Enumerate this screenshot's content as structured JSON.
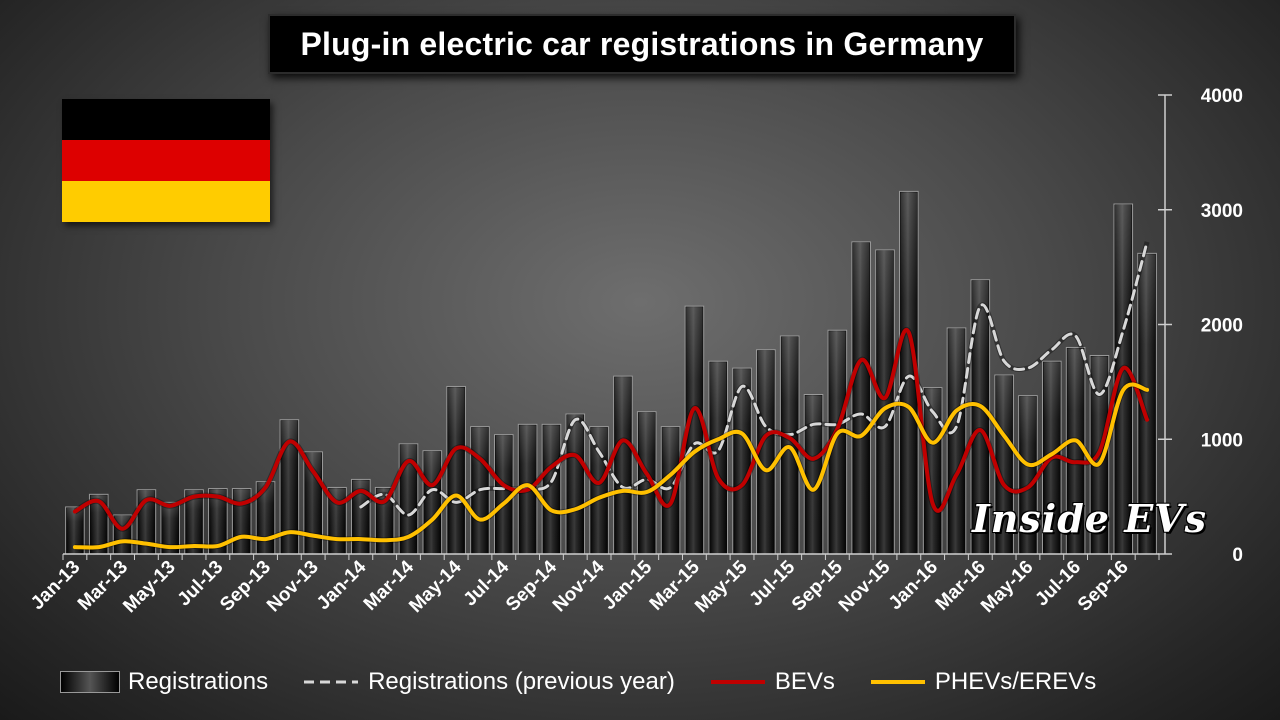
{
  "chart_data": {
    "type": "bar",
    "title": "Plug-in electric car registrations in Germany",
    "categories": [
      "Jan-13",
      "Feb-13",
      "Mar-13",
      "Apr-13",
      "May-13",
      "Jun-13",
      "Jul-13",
      "Aug-13",
      "Sep-13",
      "Oct-13",
      "Nov-13",
      "Dec-13",
      "Jan-14",
      "Feb-14",
      "Mar-14",
      "Apr-14",
      "May-14",
      "Jun-14",
      "Jul-14",
      "Aug-14",
      "Sep-14",
      "Oct-14",
      "Nov-14",
      "Dec-14",
      "Jan-15",
      "Feb-15",
      "Mar-15",
      "Apr-15",
      "May-15",
      "Jun-15",
      "Jul-15",
      "Aug-15",
      "Sep-15",
      "Oct-15",
      "Nov-15",
      "Dec-15",
      "Jan-16",
      "Feb-16",
      "Mar-16",
      "Apr-16",
      "May-16",
      "Jun-16",
      "Jul-16",
      "Aug-16",
      "Sep-16",
      "Oct-16"
    ],
    "tick_labels": [
      "Jan-13",
      "Mar-13",
      "May-13",
      "Jul-13",
      "Sep-13",
      "Nov-13",
      "Jan-14",
      "Mar-14",
      "May-14",
      "Jul-14",
      "Sep-14",
      "Nov-14",
      "Jan-15",
      "Mar-15",
      "May-15",
      "Jul-15",
      "Sep-15",
      "Nov-15",
      "Jan-16",
      "Mar-16",
      "May-16",
      "Jul-16",
      "Sep-16"
    ],
    "y_ticks": [
      "0",
      "1000",
      "2000",
      "3000",
      "4000"
    ],
    "ylim": [
      0,
      4000
    ],
    "axis_side": "right",
    "series": [
      {
        "name": "Registrations",
        "type": "bar",
        "color": "#000000",
        "values": [
          410,
          520,
          340,
          560,
          450,
          560,
          570,
          570,
          630,
          1170,
          890,
          580,
          650,
          580,
          960,
          900,
          1460,
          1110,
          1040,
          1130,
          1130,
          1220,
          1110,
          1550,
          1240,
          1110,
          2160,
          1680,
          1620,
          1780,
          1900,
          1390,
          1950,
          2720,
          2650,
          3160,
          1450,
          1970,
          2390,
          1560,
          1380,
          1680,
          1800,
          1730,
          3050,
          2620
        ]
      },
      {
        "name": "Registrations (previous year)",
        "type": "line",
        "style": "dashed",
        "color": "#d8d8d8",
        "values": [
          null,
          null,
          null,
          null,
          null,
          null,
          null,
          null,
          null,
          null,
          null,
          null,
          410,
          520,
          340,
          560,
          450,
          560,
          570,
          570,
          630,
          1170,
          890,
          580,
          650,
          580,
          960,
          900,
          1460,
          1110,
          1040,
          1130,
          1130,
          1220,
          1110,
          1550,
          1240,
          1110,
          2160,
          1680,
          1620,
          1780,
          1900,
          1390,
          1950,
          2720
        ]
      },
      {
        "name": "BEVs",
        "type": "line",
        "color": "#c00000",
        "values": [
          370,
          460,
          220,
          470,
          420,
          500,
          500,
          440,
          580,
          980,
          720,
          450,
          550,
          460,
          810,
          600,
          920,
          830,
          600,
          560,
          760,
          860,
          620,
          990,
          700,
          440,
          1270,
          660,
          600,
          1030,
          1010,
          830,
          1090,
          1690,
          1360,
          1930,
          440,
          690,
          1080,
          600,
          580,
          840,
          800,
          890,
          1620,
          1170
        ]
      },
      {
        "name": "PHEVs/EREVs",
        "type": "line",
        "color": "#ffc000",
        "values": [
          60,
          60,
          110,
          90,
          60,
          70,
          70,
          150,
          130,
          190,
          160,
          130,
          130,
          120,
          150,
          300,
          510,
          300,
          440,
          600,
          380,
          390,
          490,
          550,
          540,
          690,
          890,
          1000,
          1050,
          730,
          930,
          560,
          1050,
          1030,
          1270,
          1280,
          970,
          1250,
          1290,
          1030,
          780,
          870,
          990,
          790,
          1430,
          1430
        ]
      }
    ]
  },
  "flag": {
    "colors": [
      "#000000",
      "#dd0000",
      "#ffcc00"
    ]
  },
  "watermark": {
    "text": "Inside EVs"
  }
}
